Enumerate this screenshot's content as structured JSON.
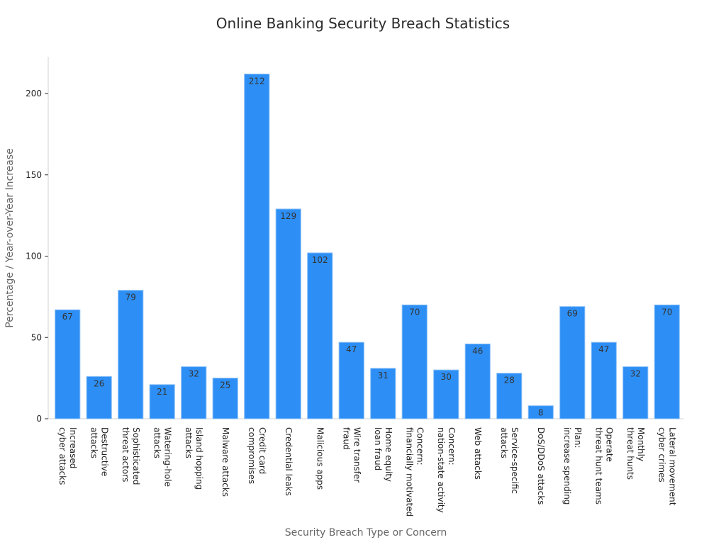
{
  "chart_data": {
    "type": "bar",
    "title": "Online Banking Security Breach Statistics",
    "xlabel": "Security Breach Type or Concern",
    "ylabel": "Percentage / Year-over-Year Increase",
    "ylim": [
      0,
      222
    ],
    "yticks": [
      0,
      50,
      100,
      150,
      200
    ],
    "grid": false,
    "bar_color": "#2d8ff5",
    "categories": [
      [
        "Increased",
        "cyber attacks"
      ],
      [
        "Destructive",
        "attacks"
      ],
      [
        "Sophisticated",
        "threat actors"
      ],
      [
        "Watering-hole",
        "attacks"
      ],
      [
        "Island hopping",
        "attacks"
      ],
      [
        "Malware attacks"
      ],
      [
        "Credit card",
        "compromises"
      ],
      [
        "Credential leaks"
      ],
      [
        "Malicious apps"
      ],
      [
        "Wire transfer",
        "fraud"
      ],
      [
        "Home equity",
        "loan fraud"
      ],
      [
        "Concern:",
        "financially motivated"
      ],
      [
        "Concern:",
        "nation-state activity"
      ],
      [
        "Web attacks"
      ],
      [
        "Service-specific",
        "attacks"
      ],
      [
        "DoS/DDoS attacks"
      ],
      [
        "Plan:",
        "increase spending"
      ],
      [
        "Operate",
        "threat hunt teams"
      ],
      [
        "Monthly",
        "threat hunts"
      ],
      [
        "Lateral movement",
        "cyber crimes"
      ]
    ],
    "values": [
      67,
      26,
      79,
      21,
      32,
      25,
      212,
      129,
      102,
      47,
      31,
      70,
      30,
      46,
      28,
      8,
      69,
      47,
      32,
      70
    ]
  }
}
